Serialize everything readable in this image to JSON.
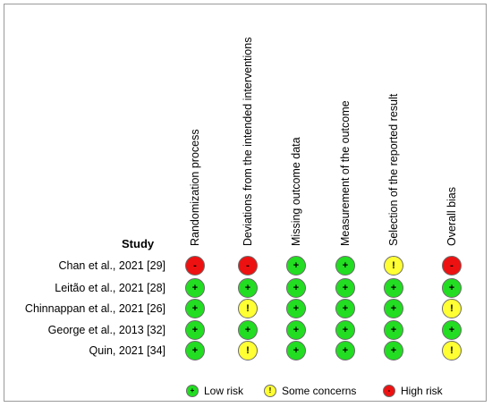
{
  "heading": "Study",
  "domains": [
    "Randomization process",
    "Deviations from the intended interventions",
    "Missing outcome data",
    "Measurement of the outcome",
    "Selection of the reported result",
    "Overall bias"
  ],
  "levels": {
    "low": {
      "symbol": "+",
      "color": "#22dd22",
      "label": "Low risk"
    },
    "some": {
      "symbol": "!",
      "color": "#ffff33",
      "label": "Some concerns"
    },
    "high": {
      "symbol": "-",
      "color": "#ee1111",
      "label": "High risk"
    }
  },
  "studies": [
    {
      "name": "Chan et al., 2021 [29]",
      "ratings": [
        "high",
        "high",
        "low",
        "low",
        "some",
        "high"
      ]
    },
    {
      "name": "Leitão et al., 2021 [28]",
      "ratings": [
        "low",
        "low",
        "low",
        "low",
        "low",
        "low"
      ]
    },
    {
      "name": "Chinnappan et al., 2021 [26]",
      "ratings": [
        "low",
        "some",
        "low",
        "low",
        "low",
        "some"
      ]
    },
    {
      "name": "George et al., 2013 [32]",
      "ratings": [
        "low",
        "low",
        "low",
        "low",
        "low",
        "low"
      ]
    },
    {
      "name": "Quin, 2021 [34]",
      "ratings": [
        "low",
        "some",
        "low",
        "low",
        "low",
        "some"
      ]
    }
  ],
  "legend": [
    "low",
    "some",
    "high"
  ]
}
